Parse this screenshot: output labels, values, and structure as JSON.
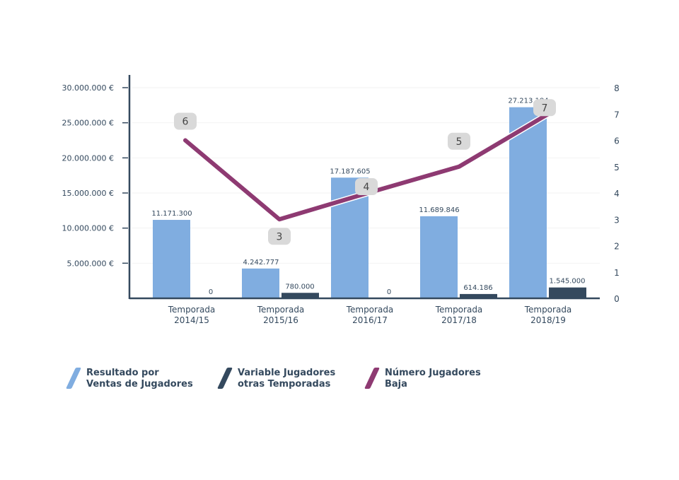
{
  "chart_data": {
    "type": "bar",
    "categories": [
      "Temporada\n2014/15",
      "Temporada\n2015/16",
      "Temporada\n2016/17",
      "Temporada\n2017/18",
      "Temporada\n2018/19"
    ],
    "series": [
      {
        "name": "Resultado por\nVentas de Jugadores",
        "type": "bar",
        "axis": "left",
        "color": "#80ade0",
        "values": [
          11171300,
          4242777,
          17187605,
          11689846,
          27213184
        ],
        "labels": [
          "11.171.300",
          "4.242.777",
          "17.187.605",
          "11.689.846",
          "27.213.184"
        ]
      },
      {
        "name": "Variable Jugadores\notras Temporadas",
        "type": "bar",
        "axis": "left",
        "color": "#34495e",
        "values": [
          0,
          780000,
          0,
          614186,
          1545000
        ],
        "labels": [
          "0",
          "780.000",
          "0",
          "614.186",
          "1.545.000"
        ]
      },
      {
        "name": "Número Jugadores\nBaja",
        "type": "line",
        "axis": "right",
        "color": "#8e3a72",
        "values": [
          6,
          3,
          4,
          5,
          7
        ],
        "labels": [
          "6",
          "3",
          "4",
          "5",
          "7"
        ]
      }
    ],
    "y_left": {
      "range": [
        0,
        30000000
      ],
      "ticks": [
        "5.000.000 €",
        "10.000.000 €",
        "15.000.000 €",
        "20.000.000 €",
        "25.000.000 €",
        "30.000.000 €"
      ],
      "tick_values": [
        5000000,
        10000000,
        15000000,
        20000000,
        25000000,
        30000000
      ]
    },
    "y_right": {
      "range": [
        0,
        8
      ],
      "ticks": [
        "0",
        "1",
        "2",
        "3",
        "4",
        "5",
        "6",
        "7",
        "8"
      ]
    },
    "grid": true,
    "legend_position": "bottom"
  }
}
